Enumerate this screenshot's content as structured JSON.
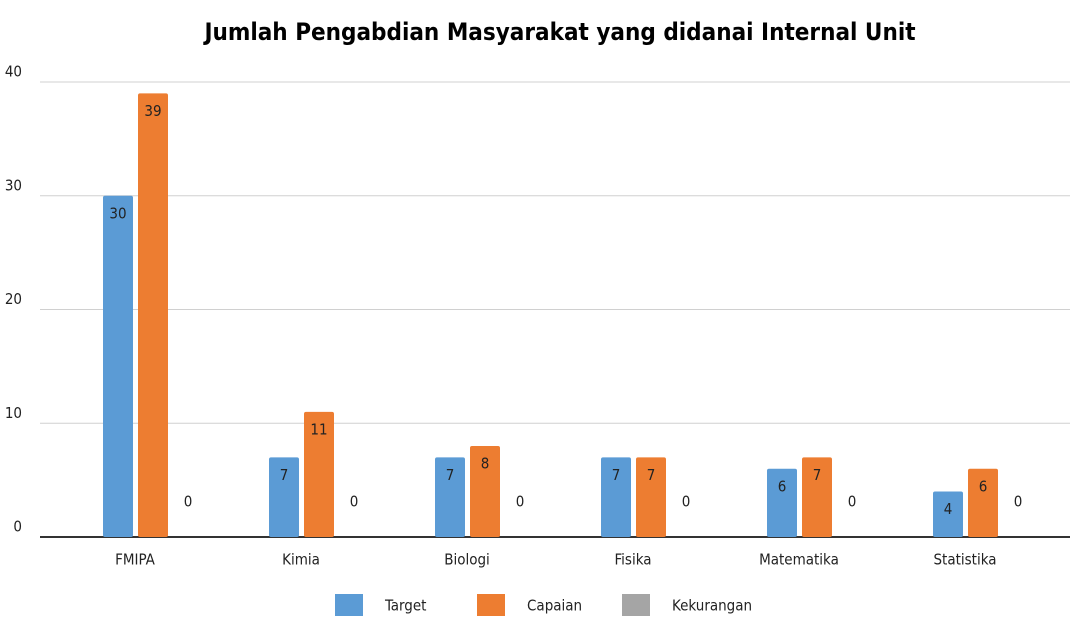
{
  "chart_data": {
    "type": "bar",
    "title": "Jumlah Pengabdian Masyarakat yang didanai Internal Unit",
    "categories": [
      "FMIPA",
      "Kimia",
      "Biologi",
      "Fisika",
      "Matematika",
      "Statistika"
    ],
    "series": [
      {
        "name": "Target",
        "color": "#5b9bd5",
        "values": [
          30,
          7,
          7,
          7,
          6,
          4
        ]
      },
      {
        "name": "Capaian",
        "color": "#ed7d31",
        "values": [
          39,
          11,
          8,
          7,
          7,
          6
        ]
      },
      {
        "name": "Kekurangan",
        "color": "#a5a5a5",
        "values": [
          0,
          0,
          0,
          0,
          0,
          0
        ]
      }
    ],
    "ylim": [
      0,
      40
    ],
    "yticks": [
      0,
      10,
      20,
      30,
      40
    ],
    "grid": true,
    "legend": "bottom"
  }
}
